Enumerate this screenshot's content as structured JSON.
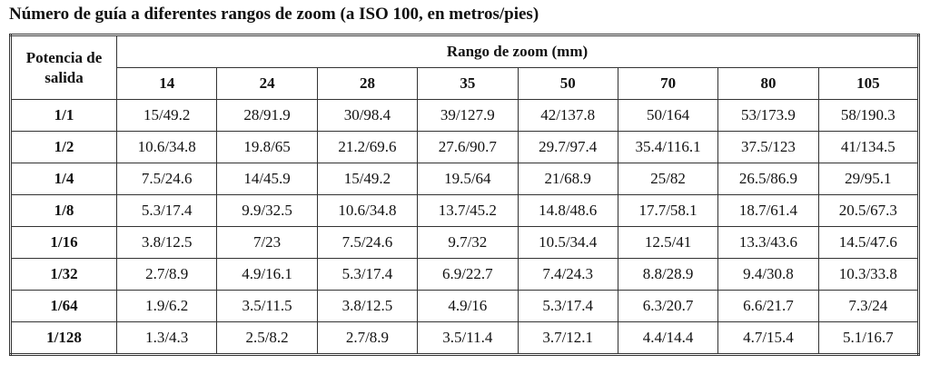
{
  "title": "Número de guía a diferentes rangos de zoom (a ISO 100, en metros/pies)",
  "table": {
    "corner": "Potencia de salida",
    "group": "Rango de zoom (mm)",
    "columns": [
      "14",
      "24",
      "28",
      "35",
      "50",
      "70",
      "80",
      "105"
    ],
    "rows": [
      [
        "1/1",
        "15/49.2",
        "28/91.9",
        "30/98.4",
        "39/127.9",
        "42/137.8",
        "50/164",
        "53/173.9",
        "58/190.3"
      ],
      [
        "1/2",
        "10.6/34.8",
        "19.8/65",
        "21.2/69.6",
        "27.6/90.7",
        "29.7/97.4",
        "35.4/116.1",
        "37.5/123",
        "41/134.5"
      ],
      [
        "1/4",
        "7.5/24.6",
        "14/45.9",
        "15/49.2",
        "19.5/64",
        "21/68.9",
        "25/82",
        "26.5/86.9",
        "29/95.1"
      ],
      [
        "1/8",
        "5.3/17.4",
        "9.9/32.5",
        "10.6/34.8",
        "13.7/45.2",
        "14.8/48.6",
        "17.7/58.1",
        "18.7/61.4",
        "20.5/67.3"
      ],
      [
        "1/16",
        "3.8/12.5",
        "7/23",
        "7.5/24.6",
        "9.7/32",
        "10.5/34.4",
        "12.5/41",
        "13.3/43.6",
        "14.5/47.6"
      ],
      [
        "1/32",
        "2.7/8.9",
        "4.9/16.1",
        "5.3/17.4",
        "6.9/22.7",
        "7.4/24.3",
        "8.8/28.9",
        "9.4/30.8",
        "10.3/33.8"
      ],
      [
        "1/64",
        "1.9/6.2",
        "3.5/11.5",
        "3.8/12.5",
        "4.9/16",
        "5.3/17.4",
        "6.3/20.7",
        "6.6/21.7",
        "7.3/24"
      ],
      [
        "1/128",
        "1.3/4.3",
        "2.5/8.2",
        "2.7/8.9",
        "3.5/11.4",
        "3.7/12.1",
        "4.4/14.4",
        "4.7/15.4",
        "5.1/16.7"
      ]
    ]
  }
}
